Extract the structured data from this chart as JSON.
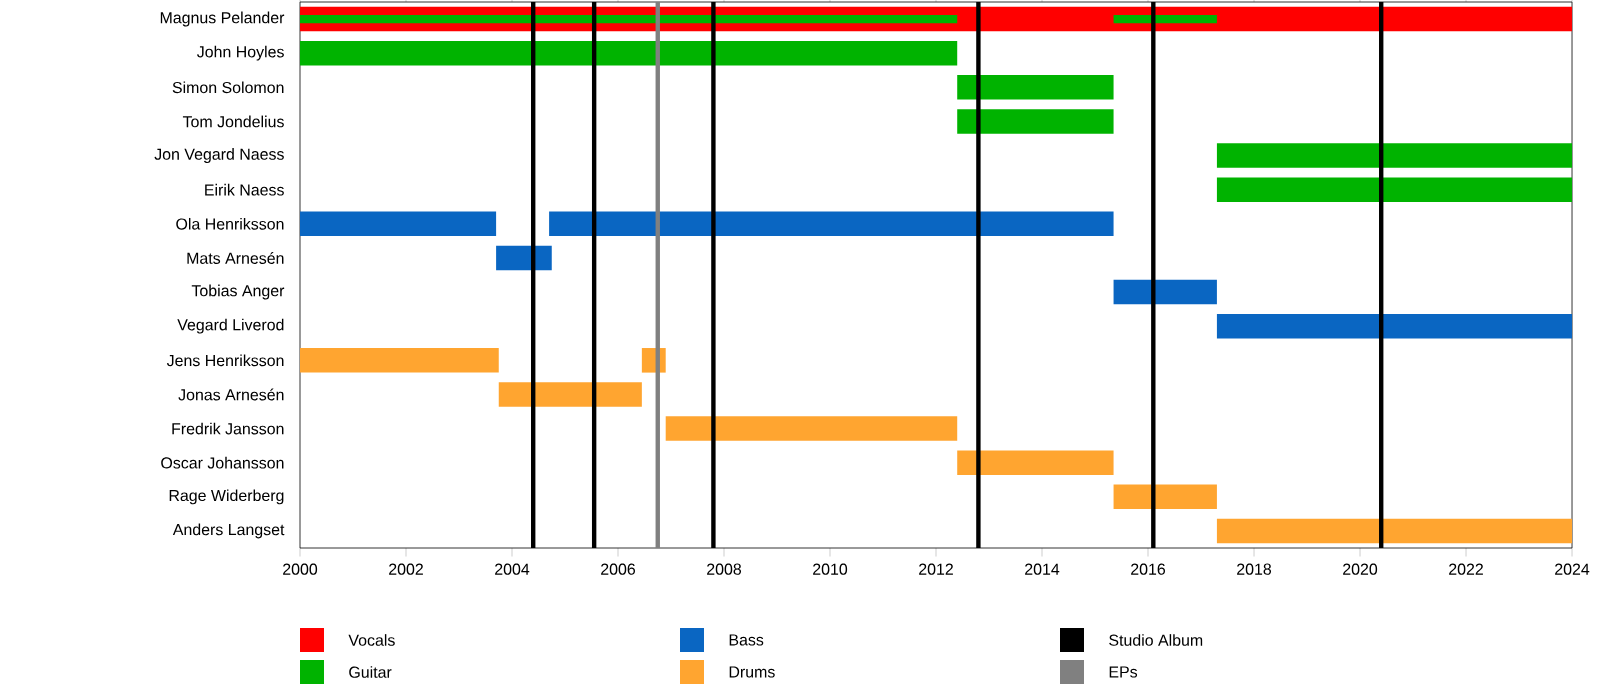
{
  "chart_data": {
    "type": "bar",
    "orientation": "horizontal",
    "categories": [
      "Magnus Pelander",
      "John Hoyles",
      "Simon Solomon",
      "Tom Jondelius",
      "Jon Vegard Naess",
      "Eirik Naess",
      "Ola Henriksson",
      "Mats Arnesén",
      "Tobias Anger",
      "Vegard Liverod",
      "Jens Henriksson",
      "Jonas Arnesén",
      "Fredrik Jansson",
      "Oscar Johansson",
      "Rage Widerberg",
      "Anders Langset"
    ],
    "series": [
      {
        "name": "Vocals",
        "color": "#ff0000",
        "base": [
          2000,
          null,
          null,
          null,
          null,
          null,
          null,
          null,
          null,
          null,
          null,
          null,
          null,
          null,
          null,
          null
        ],
        "values": [
          24,
          null,
          null,
          null,
          null,
          null,
          null,
          null,
          null,
          null,
          null,
          null,
          null,
          null,
          null,
          null
        ]
      },
      {
        "name": "Guitar",
        "color": "#00b300",
        "base": [
          2000,
          2000,
          2012.4,
          2012.4,
          2017.3,
          2017.3,
          null,
          null,
          null,
          null,
          null,
          null,
          null,
          null,
          null,
          null
        ],
        "values": [
          12.4,
          12.4,
          2.95,
          2.95,
          6.7,
          6.7,
          null,
          null,
          null,
          null,
          null,
          null,
          null,
          null,
          null,
          null
        ]
      },
      {
        "color": "#00b300",
        "base": [
          2015.35,
          null,
          null,
          null,
          null,
          null,
          null,
          null,
          null,
          null,
          null,
          null,
          null,
          null,
          null,
          null
        ],
        "values": [
          1.95,
          null,
          null,
          null,
          null,
          null,
          null,
          null,
          null,
          null,
          null,
          null,
          null,
          null,
          null,
          null
        ]
      },
      {
        "name": "Bass",
        "color": "#0a66c2",
        "base": [
          null,
          null,
          null,
          null,
          null,
          null,
          2000,
          2003.7,
          2015.35,
          2017.3,
          null,
          null,
          null,
          null,
          null,
          null
        ],
        "values": [
          null,
          null,
          null,
          null,
          null,
          null,
          3.7,
          1.05,
          1.95,
          6.7,
          null,
          null,
          null,
          null,
          null,
          null
        ]
      },
      {
        "color": "#0a66c2",
        "base": [
          null,
          null,
          null,
          null,
          null,
          null,
          2004.7,
          null,
          null,
          null,
          null,
          null,
          null,
          null,
          null,
          null
        ],
        "values": [
          null,
          null,
          null,
          null,
          null,
          null,
          10.65,
          null,
          null,
          null,
          null,
          null,
          null,
          null,
          null,
          null
        ]
      },
      {
        "name": "Drums",
        "color": "#ffa530",
        "base": [
          null,
          null,
          null,
          null,
          null,
          null,
          null,
          null,
          null,
          null,
          2000,
          2003.75,
          2006.9,
          2012.4,
          2015.35,
          2017.3
        ],
        "values": [
          null,
          null,
          null,
          null,
          null,
          null,
          null,
          null,
          null,
          null,
          3.75,
          2.7,
          5.5,
          2.95,
          1.95,
          6.7
        ]
      },
      {
        "color": "#ffa530",
        "base": [
          null,
          null,
          null,
          null,
          null,
          null,
          null,
          null,
          null,
          null,
          2006.45,
          null,
          null,
          null,
          null,
          null
        ],
        "values": [
          null,
          null,
          null,
          null,
          null,
          null,
          null,
          null,
          null,
          null,
          0.45,
          null,
          null,
          null,
          null,
          null
        ]
      }
    ],
    "ref_lines": [
      {
        "axis": "x",
        "value": 2004.4,
        "label": "Studio Album",
        "color": "#000000"
      },
      {
        "axis": "x",
        "value": 2005.55,
        "color": "#000000"
      },
      {
        "axis": "x",
        "value": 2006.75,
        "label": "EPs",
        "color": "#808080"
      },
      {
        "axis": "x",
        "value": 2007.8,
        "color": "#000000"
      },
      {
        "axis": "x",
        "value": 2012.8,
        "color": "#000000"
      },
      {
        "axis": "x",
        "value": 2016.1,
        "color": "#000000"
      },
      {
        "axis": "x",
        "value": 2020.4,
        "color": "#000000"
      }
    ],
    "xlim": [
      2000,
      2024
    ],
    "xticks": [
      2000,
      2002,
      2004,
      2006,
      2008,
      2010,
      2012,
      2014,
      2016,
      2018,
      2020,
      2022,
      2024
    ],
    "legend": "bottom"
  }
}
